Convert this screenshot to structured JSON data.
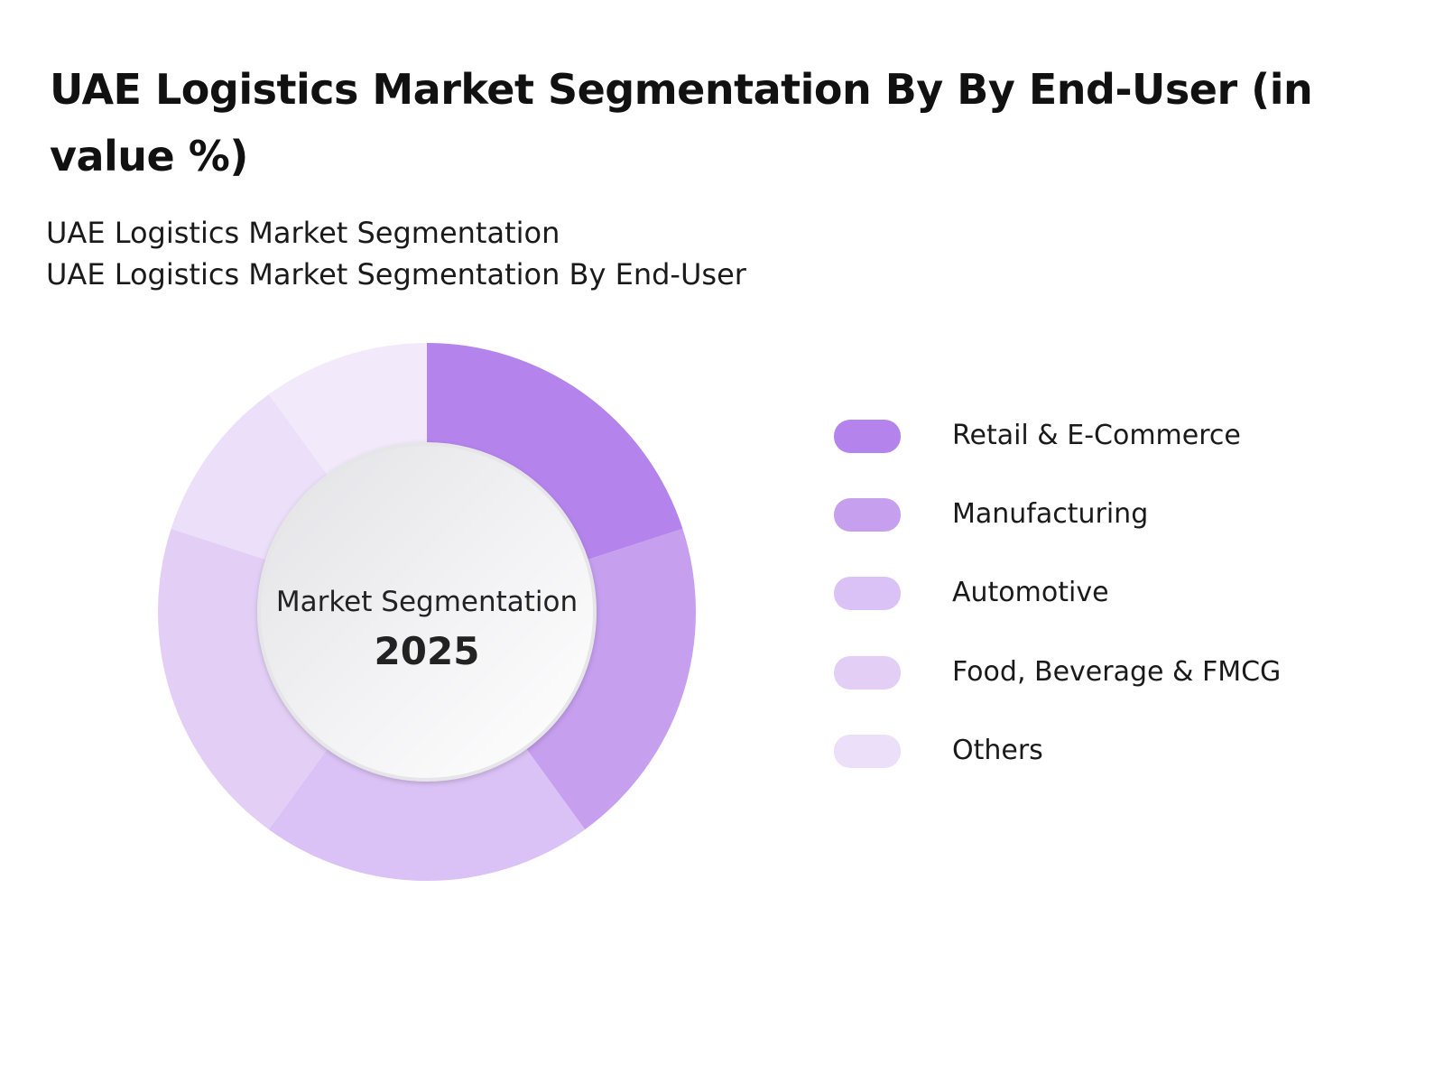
{
  "header": {
    "title": "UAE Logistics Market Segmentation By By End-User (in value %)",
    "subtitle_line1": "UAE Logistics Market Segmentation",
    "subtitle_line2": "UAE Logistics Market Segmentation By End-User"
  },
  "center": {
    "label": "Market Segmentation",
    "year": "2025"
  },
  "chart_data": {
    "type": "pie",
    "style": "donut",
    "title": "UAE Logistics Market Segmentation By By End-User (in value %)",
    "legend_position": "right",
    "categories": [
      "Retail & E-Commerce",
      "Manufacturing",
      "Automotive",
      "Food, Beverage & FMCG",
      "Others"
    ],
    "values": [
      20,
      20,
      20,
      20,
      20
    ],
    "colors": [
      "#b484ec",
      "#c69fef",
      "#dbc2f6",
      "#e3cff6",
      "#ecdff9",
      "#f2eafb"
    ],
    "slices": [
      {
        "label": "Retail & E-Commerce",
        "value": 20,
        "color": "#b484ec"
      },
      {
        "label": "Manufacturing",
        "value": 20,
        "color": "#c69fef"
      },
      {
        "label": "Automotive",
        "value": 20,
        "color": "#dbc2f6"
      },
      {
        "label": "Food, Beverage & FMCG",
        "value": 20,
        "color": "#e3cff6"
      },
      {
        "label": "Others",
        "value": 10,
        "color": "#ecdff9"
      },
      {
        "label": "Others",
        "value": 10,
        "color": "#f2eafb"
      }
    ]
  },
  "legend": {
    "items": [
      {
        "label": "Retail & E-Commerce",
        "color": "#b484ec"
      },
      {
        "label": "Manufacturing",
        "color": "#c69fef"
      },
      {
        "label": "Automotive",
        "color": "#dbc2f6"
      },
      {
        "label": "Food, Beverage & FMCG",
        "color": "#e3cff6"
      },
      {
        "label": "Others",
        "color": "#ecdff9"
      }
    ]
  }
}
